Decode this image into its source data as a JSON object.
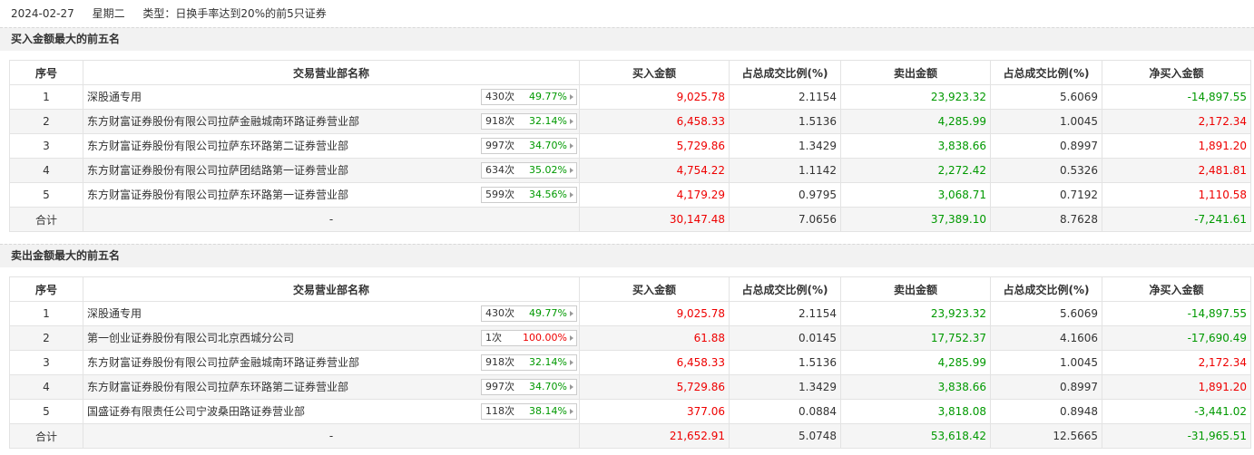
{
  "header": {
    "date": "2024-02-27",
    "weekday": "星期二",
    "type": "类型：日换手率达到20%的前5只证券"
  },
  "sections": [
    {
      "title": "买入金额最大的前五名",
      "columns": [
        "序号",
        "交易营业部名称",
        "买入金额",
        "占总成交比例(%)",
        "卖出金额",
        "占总成交比例(%)",
        "净买入金额"
      ],
      "rows": [
        {
          "rank": "1",
          "name": "深股通专用",
          "count": "430次",
          "pct": "49.77%",
          "buy": "9,025.78",
          "buy_ratio": "2.1154",
          "sell": "23,923.32",
          "sell_ratio": "5.6069",
          "net": "-14,897.55"
        },
        {
          "rank": "2",
          "name": "东方财富证券股份有限公司拉萨金融城南环路证券营业部",
          "count": "918次",
          "pct": "32.14%",
          "buy": "6,458.33",
          "buy_ratio": "1.5136",
          "sell": "4,285.99",
          "sell_ratio": "1.0045",
          "net": "2,172.34"
        },
        {
          "rank": "3",
          "name": "东方财富证券股份有限公司拉萨东环路第二证券营业部",
          "count": "997次",
          "pct": "34.70%",
          "buy": "5,729.86",
          "buy_ratio": "1.3429",
          "sell": "3,838.66",
          "sell_ratio": "0.8997",
          "net": "1,891.20"
        },
        {
          "rank": "4",
          "name": "东方财富证券股份有限公司拉萨团结路第一证券营业部",
          "count": "634次",
          "pct": "35.02%",
          "buy": "4,754.22",
          "buy_ratio": "1.1142",
          "sell": "2,272.42",
          "sell_ratio": "0.5326",
          "net": "2,481.81"
        },
        {
          "rank": "5",
          "name": "东方财富证券股份有限公司拉萨东环路第一证券营业部",
          "count": "599次",
          "pct": "34.56%",
          "buy": "4,179.29",
          "buy_ratio": "0.9795",
          "sell": "3,068.71",
          "sell_ratio": "0.7192",
          "net": "1,110.58"
        }
      ],
      "total": {
        "rank": "合计",
        "name": "-",
        "buy": "30,147.48",
        "buy_ratio": "7.0656",
        "sell": "37,389.10",
        "sell_ratio": "8.7628",
        "net": "-7,241.61"
      }
    },
    {
      "title": "卖出金额最大的前五名",
      "columns": [
        "序号",
        "交易营业部名称",
        "买入金额",
        "占总成交比例(%)",
        "卖出金额",
        "占总成交比例(%)",
        "净买入金额"
      ],
      "rows": [
        {
          "rank": "1",
          "name": "深股通专用",
          "count": "430次",
          "pct": "49.77%",
          "buy": "9,025.78",
          "buy_ratio": "2.1154",
          "sell": "23,923.32",
          "sell_ratio": "5.6069",
          "net": "-14,897.55"
        },
        {
          "rank": "2",
          "name": "第一创业证券股份有限公司北京西城分公司",
          "count": "1次",
          "pct": "100.00%",
          "buy": "61.88",
          "buy_ratio": "0.0145",
          "sell": "17,752.37",
          "sell_ratio": "4.1606",
          "net": "-17,690.49"
        },
        {
          "rank": "3",
          "name": "东方财富证券股份有限公司拉萨金融城南环路证券营业部",
          "count": "918次",
          "pct": "32.14%",
          "buy": "6,458.33",
          "buy_ratio": "1.5136",
          "sell": "4,285.99",
          "sell_ratio": "1.0045",
          "net": "2,172.34"
        },
        {
          "rank": "4",
          "name": "东方财富证券股份有限公司拉萨东环路第二证券营业部",
          "count": "997次",
          "pct": "34.70%",
          "buy": "5,729.86",
          "buy_ratio": "1.3429",
          "sell": "3,838.66",
          "sell_ratio": "0.8997",
          "net": "1,891.20"
        },
        {
          "rank": "5",
          "name": "国盛证券有限责任公司宁波桑田路证券营业部",
          "count": "118次",
          "pct": "38.14%",
          "buy": "377.06",
          "buy_ratio": "0.0884",
          "sell": "3,818.08",
          "sell_ratio": "0.8948",
          "net": "-3,441.02"
        }
      ],
      "total": {
        "rank": "合计",
        "name": "-",
        "buy": "21,652.91",
        "buy_ratio": "5.0748",
        "sell": "53,618.42",
        "sell_ratio": "12.5665",
        "net": "-31,965.51"
      }
    }
  ]
}
